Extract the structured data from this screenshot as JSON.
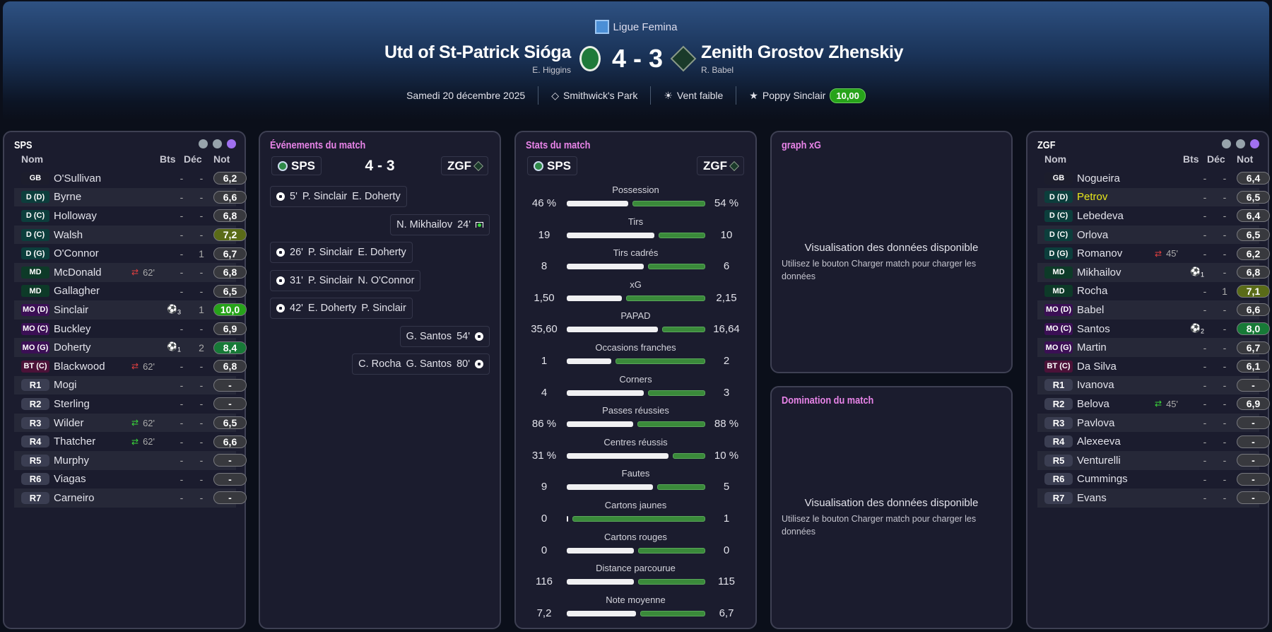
{
  "header": {
    "league": "Ligue Femina",
    "home": {
      "name": "Utd of St-Patrick Sióga",
      "manager": "E. Higgins"
    },
    "away": {
      "name": "Zenith Grostov Zhenskiy",
      "manager": "R. Babel"
    },
    "score": "4 - 3",
    "date": "Samedi 20 décembre 2025",
    "stadium": "Smithwick's Park",
    "weather": "Vent faible",
    "motm": "Poppy Sinclair",
    "motm_rating": "10,00"
  },
  "columns": {
    "name": "Nom",
    "goals": "Bts",
    "dec": "Déc",
    "rating": "Not"
  },
  "home_roster": {
    "title": "SPS",
    "players": [
      {
        "pos": "GB",
        "cls": "GB",
        "name": "O'Sullivan",
        "bts": "-",
        "dec": "-",
        "rating": "6,2"
      },
      {
        "pos": "D (D)",
        "cls": "D",
        "name": "Byrne",
        "bts": "-",
        "dec": "-",
        "rating": "6,6"
      },
      {
        "pos": "D (C)",
        "cls": "D",
        "name": "Holloway",
        "bts": "-",
        "dec": "-",
        "rating": "6,8"
      },
      {
        "pos": "D (C)",
        "cls": "D",
        "name": "Walsh",
        "bts": "-",
        "dec": "-",
        "rating": "7,2",
        "rc": "olive"
      },
      {
        "pos": "D (G)",
        "cls": "D",
        "name": "O'Connor",
        "bts": "-",
        "dec": "1",
        "rating": "6,7"
      },
      {
        "pos": "MD",
        "cls": "MD",
        "name": "McDonald",
        "sub": "out",
        "sub_min": "62'",
        "bts": "-",
        "dec": "-",
        "rating": "6,8"
      },
      {
        "pos": "MD",
        "cls": "MD",
        "name": "Gallagher",
        "bts": "-",
        "dec": "-",
        "rating": "6,5"
      },
      {
        "pos": "MO (D)",
        "cls": "MO",
        "name": "Sinclair",
        "goals": "3",
        "dec": "1",
        "rating": "10,0",
        "rc": "bright"
      },
      {
        "pos": "MO (C)",
        "cls": "MO",
        "name": "Buckley",
        "bts": "-",
        "dec": "-",
        "rating": "6,9"
      },
      {
        "pos": "MO (G)",
        "cls": "MO",
        "name": "Doherty",
        "goals": "1",
        "dec": "2",
        "rating": "8,4",
        "rc": "green"
      },
      {
        "pos": "BT (C)",
        "cls": "BT",
        "name": "Blackwood",
        "sub": "out",
        "sub_min": "62'",
        "bts": "-",
        "dec": "-",
        "rating": "6,8"
      },
      {
        "pos": "R1",
        "cls": "R",
        "name": "Mogi",
        "bts": "-",
        "dec": "-",
        "rating": "-"
      },
      {
        "pos": "R2",
        "cls": "R",
        "name": "Sterling",
        "bts": "-",
        "dec": "-",
        "rating": "-"
      },
      {
        "pos": "R3",
        "cls": "R",
        "name": "Wilder",
        "sub": "in",
        "sub_min": "62'",
        "bts": "-",
        "dec": "-",
        "rating": "6,5"
      },
      {
        "pos": "R4",
        "cls": "R",
        "name": "Thatcher",
        "sub": "in",
        "sub_min": "62'",
        "bts": "-",
        "dec": "-",
        "rating": "6,6"
      },
      {
        "pos": "R5",
        "cls": "R",
        "name": "Murphy",
        "bts": "-",
        "dec": "-",
        "rating": "-"
      },
      {
        "pos": "R6",
        "cls": "R",
        "name": "Viagas",
        "bts": "-",
        "dec": "-",
        "rating": "-"
      },
      {
        "pos": "R7",
        "cls": "R",
        "name": "Carneiro",
        "bts": "-",
        "dec": "-",
        "rating": "-"
      }
    ]
  },
  "away_roster": {
    "title": "ZGF",
    "players": [
      {
        "pos": "GB",
        "cls": "GB",
        "name": "Nogueira",
        "bts": "-",
        "dec": "-",
        "rating": "6,4"
      },
      {
        "pos": "D (D)",
        "cls": "D",
        "name": "Petrov",
        "hl": true,
        "bts": "-",
        "dec": "-",
        "rating": "6,5"
      },
      {
        "pos": "D (C)",
        "cls": "D",
        "name": "Lebedeva",
        "bts": "-",
        "dec": "-",
        "rating": "6,4"
      },
      {
        "pos": "D (C)",
        "cls": "D",
        "name": "Orlova",
        "bts": "-",
        "dec": "-",
        "rating": "6,5"
      },
      {
        "pos": "D (G)",
        "cls": "D",
        "name": "Romanov",
        "sub": "out",
        "sub_min": "45'",
        "bts": "-",
        "dec": "-",
        "rating": "6,2"
      },
      {
        "pos": "MD",
        "cls": "MD",
        "name": "Mikhailov",
        "goals": "1",
        "dec": "-",
        "rating": "6,8"
      },
      {
        "pos": "MD",
        "cls": "MD",
        "name": "Rocha",
        "bts": "-",
        "dec": "1",
        "rating": "7,1",
        "rc": "olive"
      },
      {
        "pos": "MO (D)",
        "cls": "MO",
        "name": "Babel",
        "bts": "-",
        "dec": "-",
        "rating": "6,6"
      },
      {
        "pos": "MO (C)",
        "cls": "MO",
        "name": "Santos",
        "goals": "2",
        "dec": "-",
        "rating": "8,0",
        "rc": "green"
      },
      {
        "pos": "MO (G)",
        "cls": "MO",
        "name": "Martin",
        "bts": "-",
        "dec": "-",
        "rating": "6,7"
      },
      {
        "pos": "BT (C)",
        "cls": "BT",
        "name": "Da Silva",
        "bts": "-",
        "dec": "-",
        "rating": "6,1"
      },
      {
        "pos": "R1",
        "cls": "R",
        "name": "Ivanova",
        "bts": "-",
        "dec": "-",
        "rating": "-"
      },
      {
        "pos": "R2",
        "cls": "R",
        "name": "Belova",
        "sub": "in",
        "sub_min": "45'",
        "bts": "-",
        "dec": "-",
        "rating": "6,9"
      },
      {
        "pos": "R3",
        "cls": "R",
        "name": "Pavlova",
        "bts": "-",
        "dec": "-",
        "rating": "-"
      },
      {
        "pos": "R4",
        "cls": "R",
        "name": "Alexeeva",
        "bts": "-",
        "dec": "-",
        "rating": "-"
      },
      {
        "pos": "R5",
        "cls": "R",
        "name": "Venturelli",
        "bts": "-",
        "dec": "-",
        "rating": "-"
      },
      {
        "pos": "R6",
        "cls": "R",
        "name": "Cummings",
        "bts": "-",
        "dec": "-",
        "rating": "-"
      },
      {
        "pos": "R7",
        "cls": "R",
        "name": "Evans",
        "bts": "-",
        "dec": "-",
        "rating": "-"
      }
    ]
  },
  "events": {
    "title": "Événements du match",
    "home_short": "SPS",
    "away_short": "ZGF",
    "score": "4 - 3",
    "items": [
      {
        "side": "home",
        "type": "goal",
        "minute": "5'",
        "scorer": "P. Sinclair",
        "assist": "E. Doherty"
      },
      {
        "side": "away",
        "type": "penalty",
        "minute": "24'",
        "scorer": "N. Mikhailov",
        "assist": ""
      },
      {
        "side": "home",
        "type": "goal",
        "minute": "26'",
        "scorer": "P. Sinclair",
        "assist": "E. Doherty"
      },
      {
        "side": "home",
        "type": "goal",
        "minute": "31'",
        "scorer": "P. Sinclair",
        "assist": "N. O'Connor"
      },
      {
        "side": "home",
        "type": "goal",
        "minute": "42'",
        "scorer": "E. Doherty",
        "assist": "P. Sinclair"
      },
      {
        "side": "away",
        "type": "goal",
        "minute": "54'",
        "scorer": "G. Santos",
        "assist": ""
      },
      {
        "side": "away",
        "type": "goal",
        "minute": "80'",
        "scorer": "G. Santos",
        "assist": "C. Rocha"
      }
    ]
  },
  "stats": {
    "title": "Stats du match",
    "home_short": "SPS",
    "away_short": "ZGF",
    "items": [
      {
        "label": "Possession",
        "home": "46 %",
        "away": "54 %",
        "h": 46,
        "a": 54
      },
      {
        "label": "Tirs",
        "home": "19",
        "away": "10",
        "h": 19,
        "a": 10
      },
      {
        "label": "Tirs cadrés",
        "home": "8",
        "away": "6",
        "h": 8,
        "a": 6
      },
      {
        "label": "xG",
        "home": "1,50",
        "away": "2,15",
        "h": 1.5,
        "a": 2.15
      },
      {
        "label": "PAPAD",
        "home": "35,60",
        "away": "16,64",
        "h": 35.6,
        "a": 16.64
      },
      {
        "label": "Occasions franches",
        "home": "1",
        "away": "2",
        "h": 1,
        "a": 2
      },
      {
        "label": "Corners",
        "home": "4",
        "away": "3",
        "h": 4,
        "a": 3
      },
      {
        "label": "Passes réussies",
        "home": "86 %",
        "away": "88 %",
        "h": 86,
        "a": 88
      },
      {
        "label": "Centres réussis",
        "home": "31 %",
        "away": "10 %",
        "h": 31,
        "a": 10
      },
      {
        "label": "Fautes",
        "home": "9",
        "away": "5",
        "h": 9,
        "a": 5
      },
      {
        "label": "Cartons jaunes",
        "home": "0",
        "away": "1",
        "h": 0,
        "a": 1
      },
      {
        "label": "Cartons rouges",
        "home": "0",
        "away": "0",
        "h": 0,
        "a": 0
      },
      {
        "label": "Distance parcourue",
        "home": "116",
        "away": "115",
        "h": 116,
        "a": 115
      },
      {
        "label": "Note moyenne",
        "home": "7,2",
        "away": "6,7",
        "h": 7.2,
        "a": 6.7
      }
    ]
  },
  "xg_panel": {
    "title": "graph xG",
    "empty_title": "Visualisation des données disponible",
    "empty_text": "Utilisez le bouton Charger match pour charger les données"
  },
  "domination_panel": {
    "title": "Domination du match",
    "empty_title": "Visualisation des données disponible",
    "empty_text": "Utilisez le bouton Charger match pour charger les données"
  }
}
